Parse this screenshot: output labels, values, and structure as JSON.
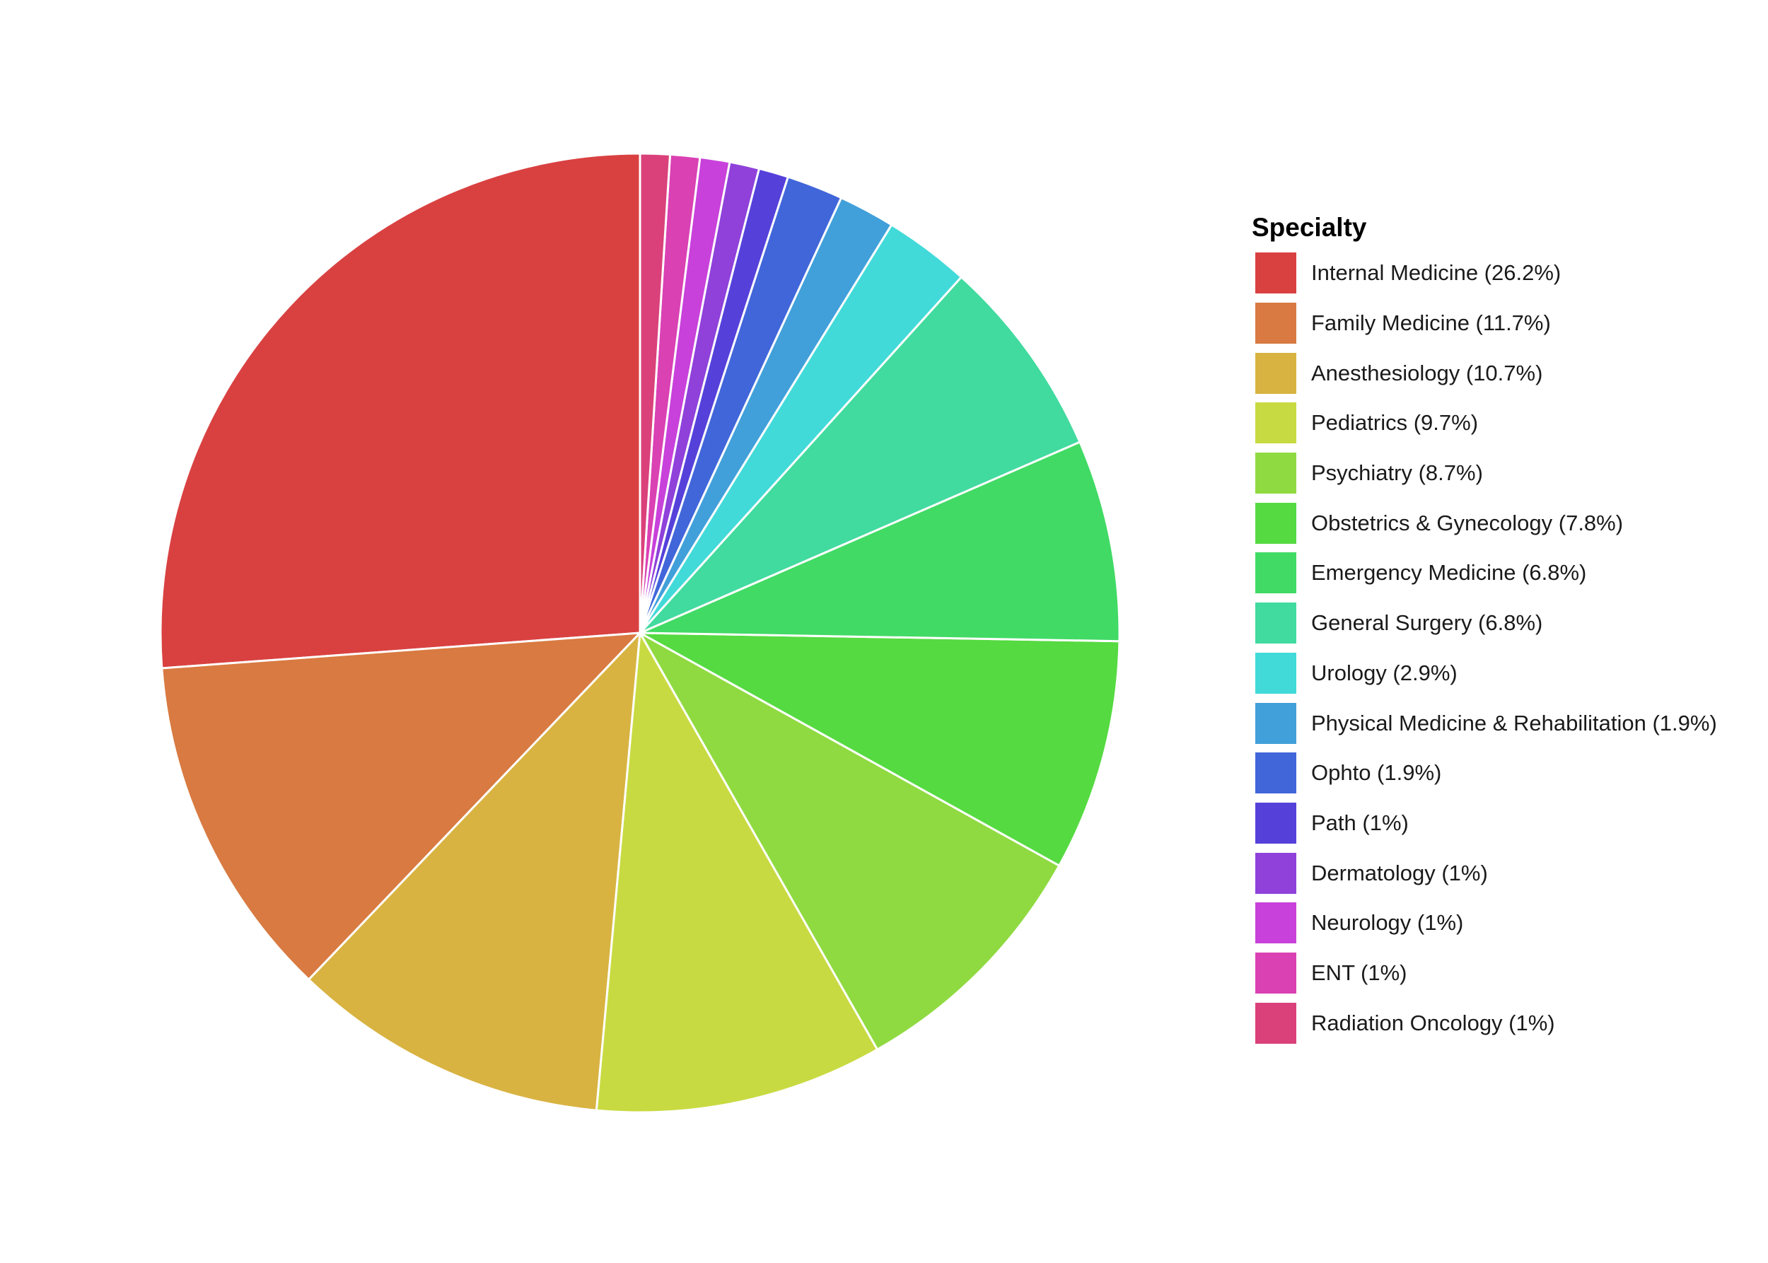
{
  "chart_data": {
    "type": "pie",
    "legend_title": "Specialty",
    "legend_position": "right",
    "start_angle": "12 o'clock",
    "direction": "counterclockwise",
    "slices": [
      {
        "label": "Internal Medicine (26.2%)",
        "name": "Internal Medicine",
        "value": 26.2,
        "color": "#D94141"
      },
      {
        "label": "Family Medicine (11.7%)",
        "name": "Family Medicine",
        "value": 11.7,
        "color": "#D87A41"
      },
      {
        "label": "Anesthesiology (10.7%)",
        "name": "Anesthesiology",
        "value": 10.7,
        "color": "#D8B341"
      },
      {
        "label": "Pediatrics (9.7%)",
        "name": "Pediatrics",
        "value": 9.7,
        "color": "#C8DA41"
      },
      {
        "label": "Psychiatry (8.7%)",
        "name": "Psychiatry",
        "value": 8.7,
        "color": "#8FDA41"
      },
      {
        "label": "Obstetrics & Gynecology (7.8%)",
        "name": "Obstetrics & Gynecology",
        "value": 7.8,
        "color": "#55DA41"
      },
      {
        "label": "Emergency Medicine (6.8%)",
        "name": "Emergency Medicine",
        "value": 6.8,
        "color": "#41DA65"
      },
      {
        "label": "General Surgery (6.8%)",
        "name": "General Surgery",
        "value": 6.8,
        "color": "#41DA9F"
      },
      {
        "label": "Urology (2.9%)",
        "name": "Urology",
        "value": 2.9,
        "color": "#41DAD9"
      },
      {
        "label": "Physical Medicine & Rehabilitation (1.9%)",
        "name": "Physical Medicine & Rehabilitation",
        "value": 1.9,
        "color": "#41A0DA"
      },
      {
        "label": "Ophto (1.9%)",
        "name": "Ophto",
        "value": 1.9,
        "color": "#4166DA"
      },
      {
        "label": "Path (1%)",
        "name": "Path",
        "value": 1.0,
        "color": "#5541DA"
      },
      {
        "label": "Dermatology (1%)",
        "name": "Dermatology",
        "value": 1.0,
        "color": "#8F41DA"
      },
      {
        "label": "Neurology (1%)",
        "name": "Neurology",
        "value": 1.0,
        "color": "#C841DA"
      },
      {
        "label": "ENT (1%)",
        "name": "ENT",
        "value": 1.0,
        "color": "#DA41B3"
      },
      {
        "label": "Radiation Oncology (1%)",
        "name": "Radiation Oncology",
        "value": 1.0,
        "color": "#DA417A"
      }
    ]
  }
}
